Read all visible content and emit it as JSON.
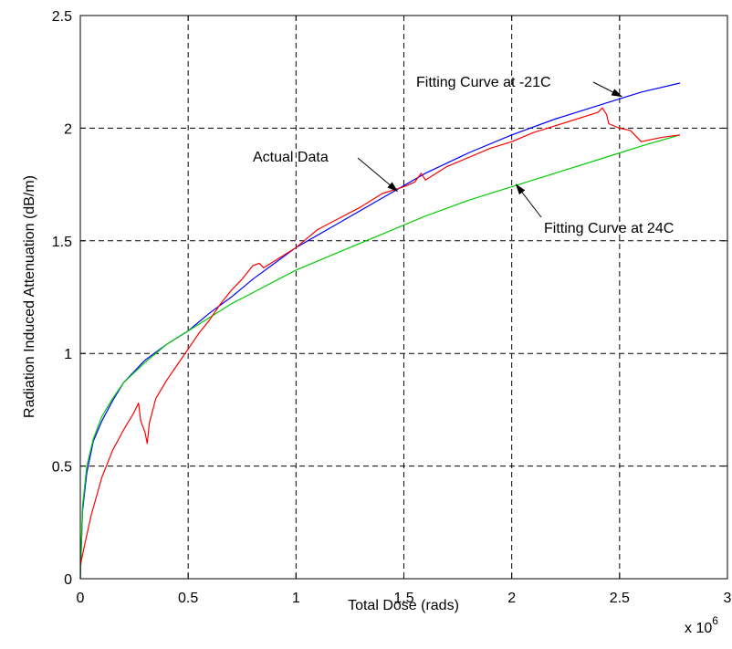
{
  "chart_data": {
    "type": "line",
    "title": "",
    "xlabel": "Total Dose (rads)",
    "ylabel": "Radiation Induced Attenuation (dB/m)",
    "x_multiplier": "x 10",
    "x_multiplier_exp": "6",
    "xlim": [
      0,
      3
    ],
    "ylim": [
      0,
      2.5
    ],
    "xticks": [
      0,
      0.5,
      1,
      1.5,
      2,
      2.5,
      3
    ],
    "xtick_labels": [
      "0",
      "0.5",
      "1",
      "1.5",
      "2",
      "2.5",
      "3"
    ],
    "yticks": [
      0,
      0.5,
      1,
      1.5,
      2,
      2.5
    ],
    "ytick_labels": [
      "0",
      "0.5",
      "1",
      "1.5",
      "2",
      "2.5"
    ],
    "grid": true,
    "series": [
      {
        "color": "#0000ff",
        "x": [
          0,
          0.01,
          0.03,
          0.06,
          0.1,
          0.15,
          0.2,
          0.3,
          0.4,
          0.5,
          0.6,
          0.7,
          0.8,
          0.9,
          1.0,
          1.2,
          1.4,
          1.6,
          1.8,
          2.0,
          2.2,
          2.4,
          2.6,
          2.78
        ],
        "y": [
          0,
          0.3,
          0.47,
          0.61,
          0.7,
          0.79,
          0.87,
          0.97,
          1.04,
          1.1,
          1.18,
          1.25,
          1.33,
          1.4,
          1.47,
          1.58,
          1.69,
          1.8,
          1.89,
          1.97,
          2.04,
          2.1,
          2.16,
          2.2
        ]
      },
      {
        "color": "#00cc00",
        "x": [
          0,
          0.01,
          0.03,
          0.06,
          0.1,
          0.15,
          0.2,
          0.3,
          0.4,
          0.5,
          0.6,
          0.7,
          0.8,
          0.9,
          1.0,
          1.2,
          1.4,
          1.6,
          1.8,
          2.0,
          2.2,
          2.4,
          2.6,
          2.78
        ],
        "y": [
          0,
          0.32,
          0.5,
          0.62,
          0.72,
          0.8,
          0.87,
          0.96,
          1.04,
          1.1,
          1.16,
          1.22,
          1.27,
          1.32,
          1.37,
          1.45,
          1.53,
          1.61,
          1.68,
          1.74,
          1.8,
          1.86,
          1.92,
          1.97
        ]
      },
      {
        "color": "#ff0000",
        "x": [
          0,
          0.02,
          0.05,
          0.1,
          0.15,
          0.2,
          0.25,
          0.27,
          0.28,
          0.3,
          0.31,
          0.32,
          0.35,
          0.4,
          0.45,
          0.5,
          0.55,
          0.6,
          0.65,
          0.7,
          0.75,
          0.8,
          0.83,
          0.85,
          0.9,
          0.95,
          1.0,
          1.05,
          1.1,
          1.2,
          1.3,
          1.4,
          1.5,
          1.55,
          1.58,
          1.6,
          1.7,
          1.8,
          1.9,
          2.0,
          2.1,
          2.2,
          2.3,
          2.4,
          2.42,
          2.44,
          2.45,
          2.5,
          2.55,
          2.6,
          2.65,
          2.7,
          2.78
        ],
        "y": [
          0.06,
          0.15,
          0.28,
          0.45,
          0.57,
          0.66,
          0.74,
          0.78,
          0.7,
          0.65,
          0.6,
          0.69,
          0.8,
          0.88,
          0.95,
          1.02,
          1.09,
          1.15,
          1.22,
          1.28,
          1.33,
          1.39,
          1.4,
          1.38,
          1.41,
          1.44,
          1.47,
          1.51,
          1.55,
          1.6,
          1.65,
          1.71,
          1.74,
          1.76,
          1.8,
          1.77,
          1.83,
          1.87,
          1.91,
          1.94,
          1.98,
          2.01,
          2.04,
          2.07,
          2.09,
          2.06,
          2.02,
          2.0,
          1.99,
          1.94,
          1.95,
          1.96,
          1.97
        ]
      }
    ],
    "annotations": [
      {
        "text": "Fitting Curve at -21C",
        "arrow_to": [
          2.51,
          2.14
        ]
      },
      {
        "text": "Actual Data",
        "arrow_to": [
          1.47,
          1.72
        ]
      },
      {
        "text": "Fitting Curve at 24C",
        "arrow_to": [
          2.02,
          1.75
        ]
      }
    ]
  }
}
